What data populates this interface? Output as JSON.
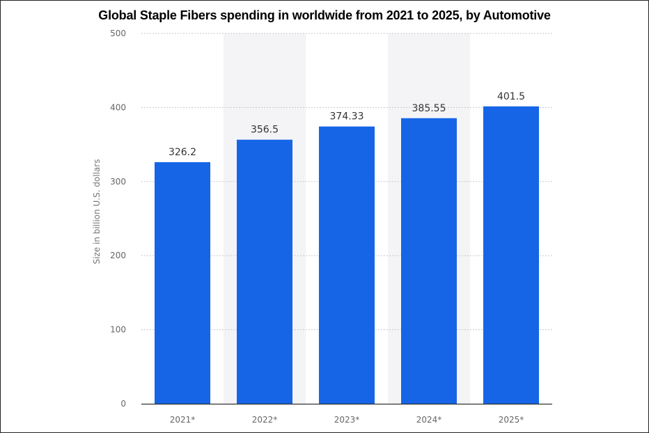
{
  "chart_data": {
    "type": "bar",
    "title": "Global Staple Fibers spending in worldwide from 2021 to 2025, by Automotive",
    "xlabel": "",
    "ylabel": "Size in billion U.S. dollars",
    "categories": [
      "2021*",
      "2022*",
      "2023*",
      "2024*",
      "2025*"
    ],
    "values": [
      326.2,
      356.5,
      374.33,
      385.55,
      401.5
    ],
    "value_labels": [
      "326.2",
      "356.5",
      "374.33",
      "385.55",
      "401.5"
    ],
    "ylim": [
      0,
      500
    ],
    "yticks": [
      0,
      100,
      200,
      300,
      400,
      500
    ],
    "grid": true,
    "legend": "none",
    "bar_color": "#1565e6",
    "band_color": "#f4f4f7"
  }
}
